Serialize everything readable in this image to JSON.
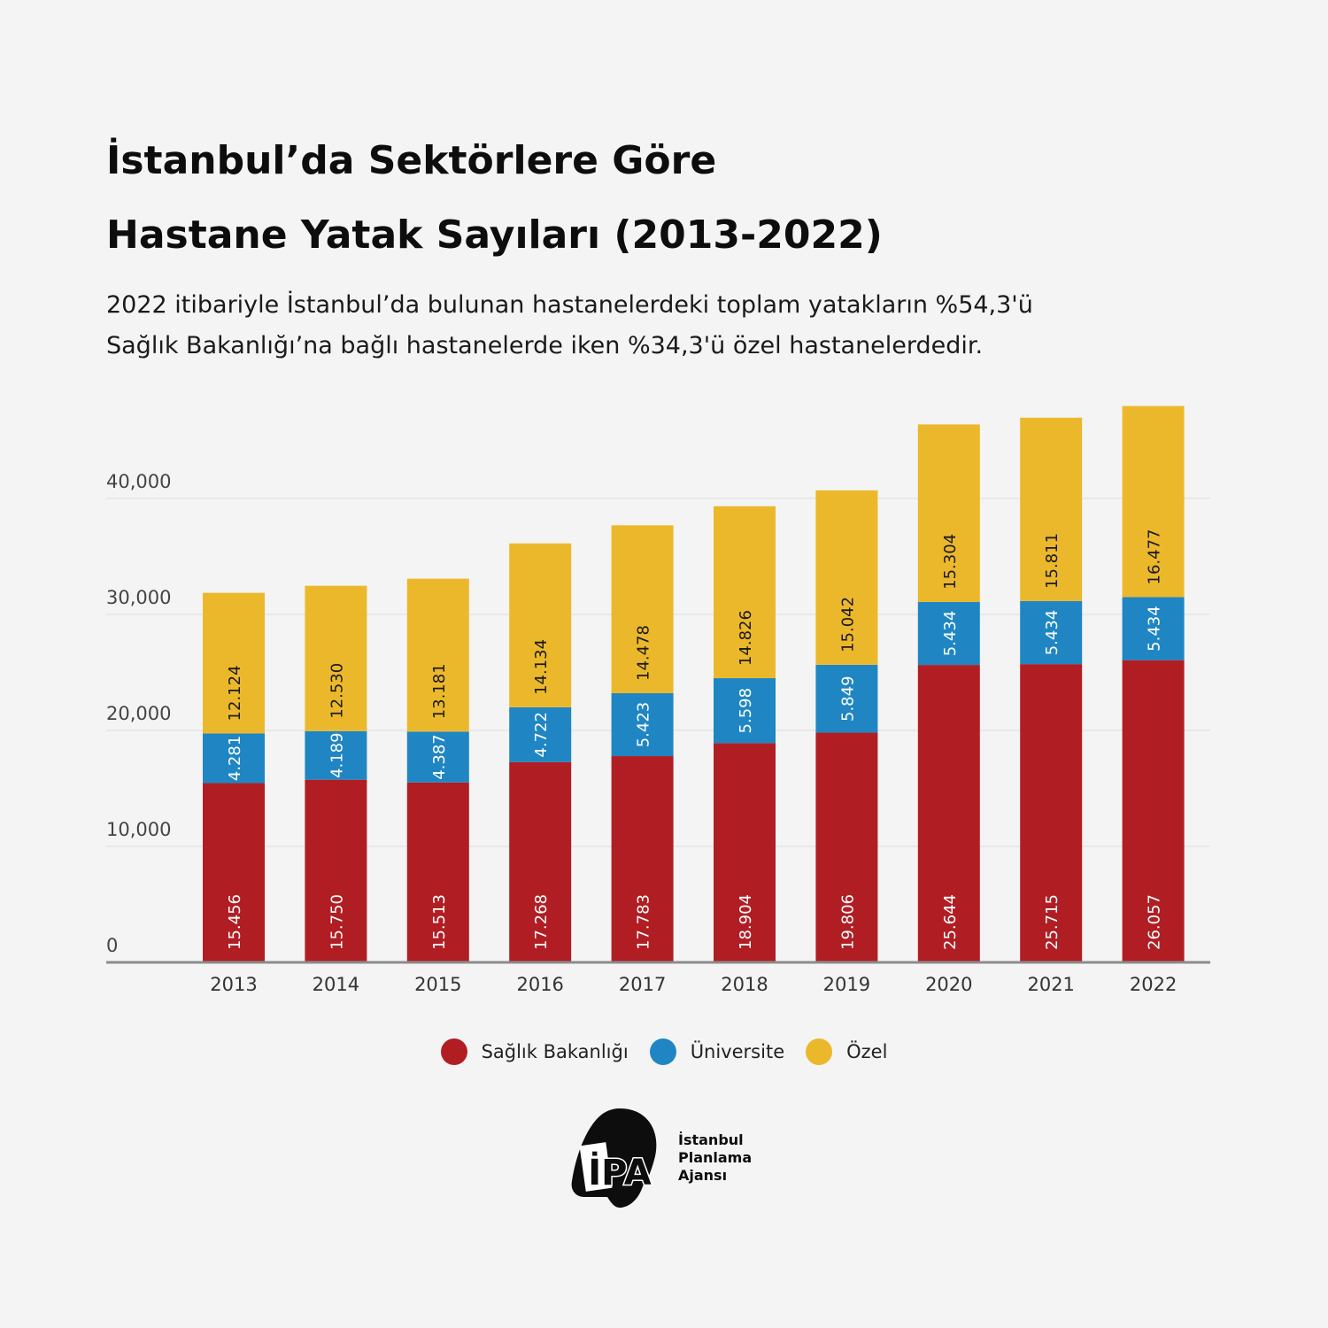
{
  "header": {
    "title_line1": "İstanbul’da Sektörlere Göre",
    "title_line2": "Hastane Yatak Sayıları (2013-2022)",
    "subtitle_line1": "2022 itibariyle İstanbul’da bulunan hastanelerdeki toplam yatakların %54,3'ü",
    "subtitle_line2": "Sağlık Bakanlığı’na bağlı hastanelerde iken %34,3'ü özel hastanelerdedir."
  },
  "chart_data": {
    "type": "bar",
    "stacked": true,
    "categories": [
      "2013",
      "2014",
      "2015",
      "2016",
      "2017",
      "2018",
      "2019",
      "2020",
      "2021",
      "2022"
    ],
    "series": [
      {
        "name": "Sağlık Bakanlığı",
        "color": "#b01e24",
        "values": [
          15456,
          15750,
          15513,
          17268,
          17783,
          18904,
          19806,
          25644,
          25715,
          26057
        ],
        "labels": [
          "15.456",
          "15.750",
          "15.513",
          "17.268",
          "17.783",
          "18.904",
          "19.806",
          "25.644",
          "25.715",
          "26.057"
        ]
      },
      {
        "name": "Üniversite",
        "color": "#1f86c3",
        "values": [
          4281,
          4189,
          4387,
          4722,
          5423,
          5598,
          5849,
          5434,
          5434,
          5434
        ],
        "labels": [
          "4.281",
          "4.189",
          "4.387",
          "4.722",
          "5.423",
          "5.598",
          "5.849",
          "5.434",
          "5.434",
          "5.434"
        ]
      },
      {
        "name": "Özel",
        "color": "#ecb82b",
        "values": [
          12124,
          12530,
          13181,
          14134,
          14478,
          14826,
          15042,
          15304,
          15811,
          16477
        ],
        "labels": [
          "12.124",
          "12.530",
          "13.181",
          "14.134",
          "14.478",
          "14.826",
          "15.042",
          "15.304",
          "15.811",
          "16.477"
        ]
      }
    ],
    "yticks": [
      0,
      10000,
      20000,
      30000,
      40000
    ],
    "ytick_labels": [
      "0",
      "10,000",
      "20,000",
      "30,000",
      "40,000"
    ],
    "ylim": [
      0,
      48000
    ],
    "grid": true,
    "legend": "bottom-center"
  },
  "logo": {
    "mark": "İPA",
    "line1": "İstanbul",
    "line2": "Planlama",
    "line3": "Ajansı"
  }
}
